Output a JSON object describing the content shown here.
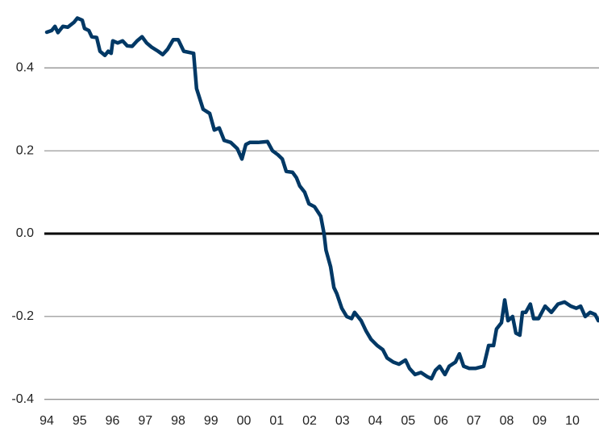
{
  "chart_data": {
    "type": "line",
    "x": [
      1994.0,
      1994.15,
      1994.25,
      1994.34,
      1994.49,
      1994.64,
      1994.83,
      1994.93,
      1995.08,
      1995.15,
      1995.28,
      1995.37,
      1995.52,
      1995.62,
      1995.77,
      1995.87,
      1995.96,
      1996.01,
      1996.16,
      1996.31,
      1996.45,
      1996.6,
      1996.75,
      1996.9,
      1997.04,
      1997.19,
      1997.39,
      1997.53,
      1997.68,
      1997.85,
      1998.0,
      1998.17,
      1998.47,
      1998.56,
      1998.76,
      1998.96,
      1999.1,
      1999.25,
      1999.4,
      1999.6,
      1999.8,
      1999.94,
      2000.06,
      2000.18,
      2000.43,
      2000.72,
      2000.87,
      2001.04,
      2001.17,
      2001.29,
      2001.48,
      2001.6,
      2001.7,
      2001.85,
      2001.98,
      2002.15,
      2002.34,
      2002.44,
      2002.5,
      2002.64,
      2002.74,
      2002.83,
      2002.98,
      2003.13,
      2003.28,
      2003.37,
      2003.57,
      2003.72,
      2003.87,
      2004.06,
      2004.23,
      2004.36,
      2004.55,
      2004.72,
      2004.92,
      2005.04,
      2005.21,
      2005.39,
      2005.58,
      2005.71,
      2005.83,
      2005.96,
      2006.12,
      2006.25,
      2006.44,
      2006.56,
      2006.69,
      2006.86,
      2007.06,
      2007.3,
      2007.45,
      2007.6,
      2007.69,
      2007.84,
      2007.94,
      2008.04,
      2008.18,
      2008.28,
      2008.4,
      2008.48,
      2008.58,
      2008.72,
      2008.82,
      2008.97,
      2009.17,
      2009.36,
      2009.56,
      2009.76,
      2009.95,
      2010.12,
      2010.25,
      2010.39,
      2010.54,
      2010.69,
      2010.79
    ],
    "series": [
      {
        "color": "#003865",
        "values": [
          0.486,
          0.49,
          0.5,
          0.485,
          0.5,
          0.498,
          0.51,
          0.52,
          0.515,
          0.495,
          0.49,
          0.475,
          0.473,
          0.44,
          0.43,
          0.44,
          0.435,
          0.465,
          0.46,
          0.465,
          0.453,
          0.452,
          0.465,
          0.475,
          0.46,
          0.45,
          0.44,
          0.432,
          0.445,
          0.468,
          0.468,
          0.44,
          0.435,
          0.35,
          0.3,
          0.29,
          0.25,
          0.255,
          0.225,
          0.22,
          0.205,
          0.18,
          0.215,
          0.22,
          0.22,
          0.222,
          0.2,
          0.19,
          0.18,
          0.15,
          0.148,
          0.135,
          0.115,
          0.1,
          0.072,
          0.065,
          0.042,
          0.0,
          -0.04,
          -0.08,
          -0.13,
          -0.145,
          -0.18,
          -0.2,
          -0.205,
          -0.19,
          -0.21,
          -0.235,
          -0.255,
          -0.27,
          -0.28,
          -0.3,
          -0.31,
          -0.315,
          -0.305,
          -0.325,
          -0.34,
          -0.335,
          -0.345,
          -0.35,
          -0.33,
          -0.32,
          -0.34,
          -0.32,
          -0.31,
          -0.29,
          -0.32,
          -0.325,
          -0.325,
          -0.32,
          -0.27,
          -0.27,
          -0.23,
          -0.215,
          -0.16,
          -0.21,
          -0.2,
          -0.24,
          -0.245,
          -0.19,
          -0.19,
          -0.17,
          -0.205,
          -0.205,
          -0.175,
          -0.19,
          -0.17,
          -0.165,
          -0.175,
          -0.18,
          -0.175,
          -0.2,
          -0.19,
          -0.195,
          -0.21
        ]
      }
    ],
    "xlim": [
      1994,
      2010.8
    ],
    "xticks": [
      {
        "value": 1994,
        "label": "94"
      },
      {
        "value": 1995,
        "label": "95"
      },
      {
        "value": 1996,
        "label": "96"
      },
      {
        "value": 1997,
        "label": "97"
      },
      {
        "value": 1998,
        "label": "98"
      },
      {
        "value": 1999,
        "label": "99"
      },
      {
        "value": 2000,
        "label": "00"
      },
      {
        "value": 2001,
        "label": "01"
      },
      {
        "value": 2002,
        "label": "02"
      },
      {
        "value": 2003,
        "label": "03"
      },
      {
        "value": 2004,
        "label": "04"
      },
      {
        "value": 2005,
        "label": "05"
      },
      {
        "value": 2006,
        "label": "06"
      },
      {
        "value": 2007,
        "label": "07"
      },
      {
        "value": 2008,
        "label": "08"
      },
      {
        "value": 2009,
        "label": "09"
      },
      {
        "value": 2010,
        "label": "10"
      }
    ],
    "ylim": [
      -0.4,
      0.55
    ],
    "yticks": [
      0.4,
      0.2,
      {
        "value": 0,
        "label": "0.0"
      },
      -0.2,
      -0.4
    ],
    "grid": true
  }
}
